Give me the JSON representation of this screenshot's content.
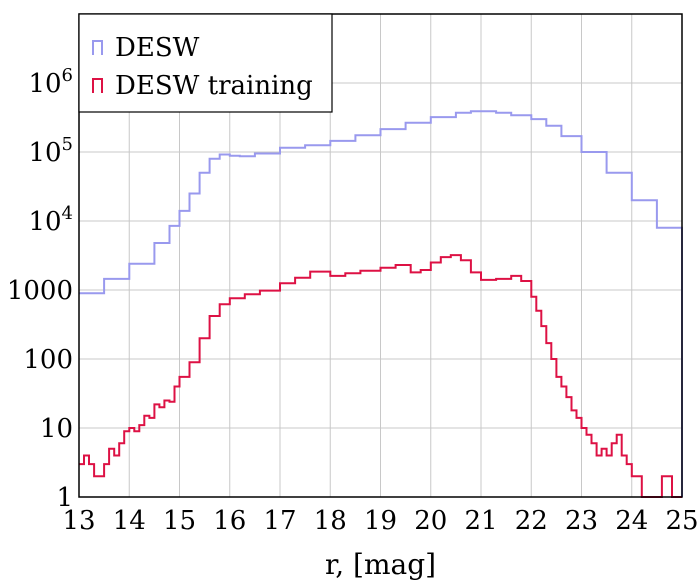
{
  "chart_data": {
    "type": "line",
    "title": "",
    "xlabel": "r, [mag]",
    "ylabel": "",
    "xlim": [
      13,
      25
    ],
    "ylim": [
      1,
      10000000
    ],
    "y_scale": "log",
    "grid": true,
    "legend_position": "top-left",
    "x_ticks": [
      {
        "value": 13,
        "label": "13"
      },
      {
        "value": 14,
        "label": "14"
      },
      {
        "value": 15,
        "label": "15"
      },
      {
        "value": 16,
        "label": "16"
      },
      {
        "value": 17,
        "label": "17"
      },
      {
        "value": 18,
        "label": "18"
      },
      {
        "value": 19,
        "label": "19"
      },
      {
        "value": 20,
        "label": "20"
      },
      {
        "value": 21,
        "label": "21"
      },
      {
        "value": 22,
        "label": "22"
      },
      {
        "value": 23,
        "label": "23"
      },
      {
        "value": 24,
        "label": "24"
      },
      {
        "value": 25,
        "label": "25"
      }
    ],
    "y_ticks": [
      {
        "value": 1,
        "label": "1"
      },
      {
        "value": 10,
        "label": "10"
      },
      {
        "value": 100,
        "label": "100"
      },
      {
        "value": 1000,
        "label": "1000"
      },
      {
        "value": 10000,
        "base": "10",
        "exp": "4"
      },
      {
        "value": 100000,
        "base": "10",
        "exp": "5"
      },
      {
        "value": 1000000,
        "base": "10",
        "exp": "6"
      }
    ],
    "series": [
      {
        "name": "DESW",
        "color": "#9999ee",
        "x": [
          13.0,
          13.5,
          14.0,
          14.5,
          14.8,
          15.0,
          15.2,
          15.4,
          15.6,
          15.8,
          16.0,
          16.2,
          16.5,
          17.0,
          17.5,
          18.0,
          18.5,
          19.0,
          19.5,
          20.0,
          20.5,
          20.8,
          21.0,
          21.3,
          21.6,
          22.0,
          22.3,
          22.6,
          23.0,
          23.5,
          24.0,
          24.5,
          25.0
        ],
        "values": [
          900,
          1450,
          2400,
          4800,
          8500,
          14000,
          25000,
          50000,
          80000,
          92000,
          88000,
          87000,
          95000,
          115000,
          125000,
          145000,
          175000,
          215000,
          265000,
          320000,
          370000,
          390000,
          390000,
          370000,
          340000,
          300000,
          240000,
          170000,
          100000,
          50000,
          20000,
          8000,
          3500
        ]
      },
      {
        "name": "DESW training",
        "color": "#dd1144",
        "x": [
          13.0,
          13.1,
          13.2,
          13.3,
          13.4,
          13.5,
          13.6,
          13.7,
          13.8,
          13.9,
          14.0,
          14.1,
          14.2,
          14.3,
          14.4,
          14.5,
          14.6,
          14.7,
          14.8,
          14.9,
          15.0,
          15.2,
          15.4,
          15.6,
          15.8,
          16.0,
          16.3,
          16.6,
          17.0,
          17.3,
          17.6,
          18.0,
          18.3,
          18.6,
          19.0,
          19.3,
          19.6,
          19.8,
          20.0,
          20.2,
          20.4,
          20.6,
          20.8,
          21.0,
          21.3,
          21.6,
          21.8,
          22.0,
          22.1,
          22.2,
          22.3,
          22.4,
          22.5,
          22.6,
          22.7,
          22.8,
          22.9,
          23.0,
          23.1,
          23.2,
          23.3,
          23.4,
          23.5,
          23.6,
          23.7,
          23.8,
          23.9,
          24.0,
          24.2,
          24.4,
          24.6,
          24.8,
          25.0
        ],
        "values": [
          3,
          4,
          3,
          2,
          2,
          3,
          5,
          4,
          6,
          9,
          10,
          9,
          11,
          15,
          14,
          22,
          20,
          25,
          24,
          40,
          55,
          90,
          200,
          420,
          620,
          760,
          870,
          980,
          1250,
          1500,
          1850,
          1600,
          1750,
          1900,
          2100,
          2300,
          1800,
          1950,
          2500,
          3000,
          3200,
          2700,
          1800,
          1400,
          1450,
          1600,
          1350,
          800,
          500,
          300,
          170,
          100,
          55,
          40,
          28,
          18,
          14,
          10,
          8,
          6,
          4,
          5,
          4,
          6,
          8,
          4,
          3,
          2,
          1,
          1,
          2,
          1,
          1
        ]
      }
    ]
  }
}
